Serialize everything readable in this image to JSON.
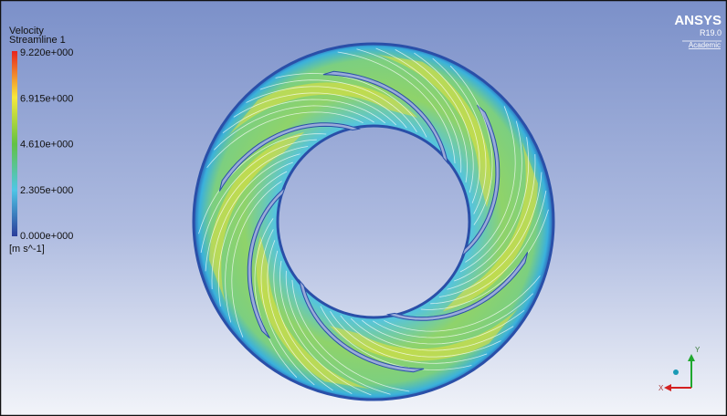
{
  "legend": {
    "title": "Velocity",
    "subtitle": "Streamline 1",
    "ticks": [
      "9.220e+000",
      "6.915e+000",
      "4.610e+000",
      "2.305e+000",
      "0.000e+000"
    ],
    "units": "[m s^-1]"
  },
  "logo": {
    "name": "ANSYS",
    "version": "R19.0",
    "edition": "Academic"
  },
  "triad": {
    "y_label": "Y",
    "x_label": "X"
  }
}
